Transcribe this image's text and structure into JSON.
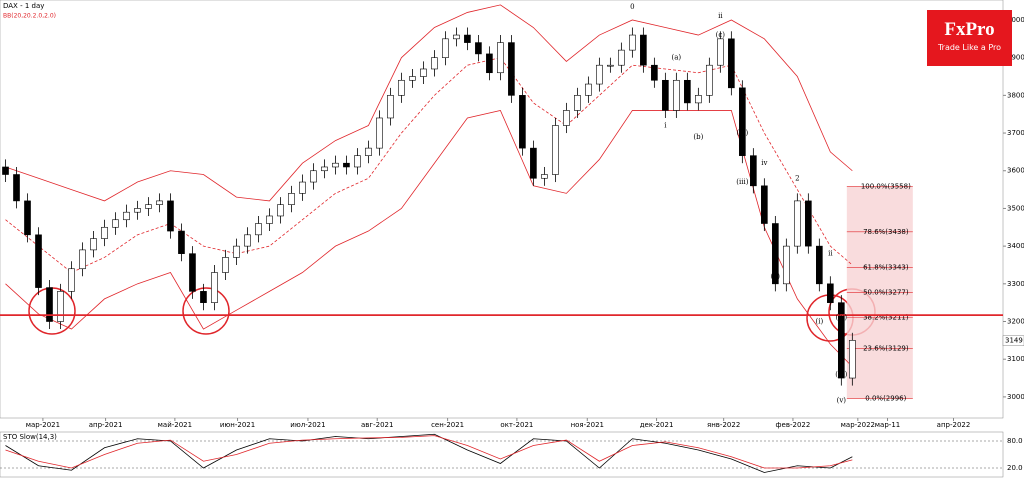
{
  "chart_data": {
    "type": "candlestick",
    "title": "DAX - 1 day",
    "indicator_label": "BB(20,20.2.0,2.0)",
    "oscillator_label": "STO Slow(14,3)",
    "brand": "FxPro",
    "tagline": "Trade Like a Pro",
    "xlim": [
      -0.5,
      90.7
    ],
    "ylim": [
      2944,
      4053
    ],
    "yticks": [
      3000,
      3100,
      3200,
      3300,
      3400,
      3500,
      3600,
      3700,
      3800,
      3900,
      4000
    ],
    "xticks": [
      {
        "value": 3.4,
        "label": "мар-2021"
      },
      {
        "value": 9.1,
        "label": "апр-2021"
      },
      {
        "value": 15.4,
        "label": "май-2021"
      },
      {
        "value": 21.1,
        "label": "июн-2021"
      },
      {
        "value": 27.5,
        "label": "июл-2021"
      },
      {
        "value": 33.8,
        "label": "авг-2021"
      },
      {
        "value": 40.2,
        "label": "сен-2021"
      },
      {
        "value": 46.5,
        "label": "окт-2021"
      },
      {
        "value": 52.9,
        "label": "ноя-2021"
      },
      {
        "value": 59.2,
        "label": "дек-2021"
      },
      {
        "value": 65.3,
        "label": "янв-2022"
      },
      {
        "value": 71.6,
        "label": "фев-2022"
      },
      {
        "value": 77.5,
        "label": "мар-2022"
      },
      {
        "value": 80.2,
        "label": "мар-11"
      },
      {
        "value": 86.2,
        "label": "апр-2022"
      }
    ],
    "open": [
      3610,
      3590,
      3520,
      3430,
      3290,
      3200,
      3280,
      3340,
      3390,
      3420,
      3450,
      3470,
      3490,
      3500,
      3510,
      3520,
      3440,
      3380,
      3280,
      3250,
      3330,
      3370,
      3400,
      3430,
      3460,
      3480,
      3510,
      3540,
      3570,
      3600,
      3610,
      3620,
      3610,
      3640,
      3660,
      3740,
      3800,
      3840,
      3850,
      3870,
      3900,
      3950,
      3960,
      3940,
      3910,
      3860,
      3940,
      3800,
      3660,
      3580,
      3590,
      3720,
      3760,
      3800,
      3830,
      3880,
      3880,
      3920,
      3960,
      3880,
      3840,
      3760,
      3840,
      3780,
      3800,
      3880,
      3950,
      3820,
      3640,
      3560,
      3460,
      3300,
      3400,
      3520,
      3400,
      3300,
      3250,
      3050
    ],
    "high": [
      3630,
      3610,
      3540,
      3450,
      3310,
      3300,
      3360,
      3410,
      3440,
      3470,
      3490,
      3510,
      3520,
      3530,
      3540,
      3540,
      3460,
      3400,
      3300,
      3350,
      3390,
      3420,
      3450,
      3480,
      3500,
      3530,
      3560,
      3590,
      3620,
      3630,
      3640,
      3640,
      3660,
      3680,
      3760,
      3820,
      3860,
      3870,
      3890,
      3920,
      3970,
      3980,
      3980,
      3960,
      3930,
      3960,
      3960,
      3820,
      3680,
      3610,
      3740,
      3780,
      3820,
      3850,
      3900,
      3900,
      3940,
      3980,
      3980,
      3900,
      3860,
      3860,
      3860,
      3820,
      3900,
      3970,
      3970,
      3840,
      3660,
      3580,
      3480,
      3420,
      3540,
      3540,
      3420,
      3320,
      3270,
      3170
    ],
    "low": [
      3570,
      3500,
      3410,
      3270,
      3180,
      3180,
      3260,
      3320,
      3370,
      3400,
      3430,
      3450,
      3470,
      3480,
      3490,
      3420,
      3360,
      3260,
      3230,
      3230,
      3310,
      3350,
      3380,
      3410,
      3440,
      3460,
      3490,
      3520,
      3550,
      3580,
      3590,
      3590,
      3590,
      3620,
      3640,
      3720,
      3780,
      3820,
      3830,
      3850,
      3880,
      3930,
      3920,
      3890,
      3840,
      3840,
      3780,
      3640,
      3560,
      3560,
      3570,
      3700,
      3740,
      3780,
      3810,
      3860,
      3860,
      3900,
      3860,
      3820,
      3740,
      3740,
      3760,
      3760,
      3780,
      3860,
      3800,
      3620,
      3540,
      3440,
      3280,
      3280,
      3380,
      3380,
      3280,
      3230,
      3030,
      3030
    ],
    "close": [
      3590,
      3520,
      3430,
      3290,
      3200,
      3280,
      3340,
      3390,
      3420,
      3450,
      3470,
      3490,
      3500,
      3510,
      3520,
      3440,
      3380,
      3280,
      3250,
      3330,
      3370,
      3400,
      3430,
      3460,
      3480,
      3510,
      3540,
      3570,
      3600,
      3610,
      3620,
      3610,
      3640,
      3660,
      3740,
      3800,
      3840,
      3850,
      3870,
      3900,
      3950,
      3960,
      3940,
      3910,
      3860,
      3940,
      3800,
      3660,
      3580,
      3590,
      3720,
      3760,
      3800,
      3830,
      3880,
      3880,
      3920,
      3960,
      3880,
      3840,
      3760,
      3840,
      3780,
      3800,
      3880,
      3950,
      3820,
      3640,
      3560,
      3460,
      3300,
      3400,
      3520,
      3400,
      3300,
      3250,
      3050,
      3150
    ],
    "up_color": "#ffffff",
    "down_color": "#000000",
    "bands": {
      "x": [
        0,
        3,
        6,
        9,
        12,
        15,
        18,
        21,
        24,
        27,
        30,
        33,
        36,
        39,
        42,
        45,
        48,
        51,
        54,
        57,
        60,
        63,
        66,
        69,
        72,
        75,
        77
      ],
      "color": "#e0262b",
      "upper": [
        3610,
        3580,
        3550,
        3520,
        3570,
        3600,
        3590,
        3530,
        3520,
        3620,
        3680,
        3720,
        3900,
        3980,
        4020,
        4040,
        3980,
        3890,
        3960,
        4000,
        3980,
        3960,
        4000,
        3950,
        3850,
        3650,
        3600
      ],
      "middle": [
        3470,
        3400,
        3330,
        3370,
        3430,
        3460,
        3400,
        3380,
        3400,
        3470,
        3540,
        3580,
        3700,
        3800,
        3880,
        3900,
        3780,
        3720,
        3800,
        3880,
        3870,
        3860,
        3880,
        3700,
        3550,
        3400,
        3350
      ],
      "lower": [
        3300,
        3220,
        3180,
        3260,
        3300,
        3330,
        3180,
        3230,
        3280,
        3330,
        3400,
        3440,
        3500,
        3620,
        3740,
        3760,
        3560,
        3540,
        3630,
        3760,
        3760,
        3760,
        3760,
        3450,
        3260,
        3140,
        3080
      ]
    },
    "support": 3217,
    "last_price": 3149,
    "fib": {
      "from_index": 76.5,
      "to_index": 82.5,
      "color": "#e0262b",
      "levels": [
        {
          "price": 3558,
          "label": "100.0%(3558)"
        },
        {
          "price": 3438,
          "label": "78.6%(3438)"
        },
        {
          "price": 3343,
          "label": "61.8%(3343)"
        },
        {
          "price": 3277,
          "label": "50.0%(3277)"
        },
        {
          "price": 3211,
          "label": "38.2%(3211)"
        },
        {
          "price": 3129,
          "label": "23.6%(3129)"
        },
        {
          "price": 2996,
          "label": "0.0%(2996)"
        }
      ]
    },
    "annotations": [
      {
        "text": "0",
        "index": 57,
        "price": 4035
      },
      {
        "text": "2",
        "index": 72,
        "price": 3580
      },
      {
        "text": "(a)",
        "index": 61,
        "price": 3900
      },
      {
        "text": "(b)",
        "index": 63,
        "price": 3690
      },
      {
        "text": "(c)",
        "index": 65,
        "price": 3960
      },
      {
        "text": "ii",
        "index": 65,
        "price": 4010
      },
      {
        "text": "i",
        "index": 60,
        "price": 3720
      },
      {
        "text": "(iv)",
        "index": 67,
        "price": 3700
      },
      {
        "text": "(iii)",
        "index": 67,
        "price": 3570
      },
      {
        "text": "iv",
        "index": 69,
        "price": 3620
      },
      {
        "text": "(v)",
        "index": 70,
        "price": 3320
      },
      {
        "text": "ii",
        "index": 75,
        "price": 3380
      },
      {
        "text": "(i)",
        "index": 74,
        "price": 3200
      },
      {
        "text": "(iv)",
        "index": 76,
        "price": 3210
      },
      {
        "text": "(iii)",
        "index": 76,
        "price": 3060
      },
      {
        "text": "(v)",
        "index": 76,
        "price": 2990
      }
    ],
    "stoch": {
      "ylim": [
        0,
        100
      ],
      "yticks": [
        {
          "value": 80,
          "label": "80.0"
        },
        {
          "value": 20,
          "label": "20.0"
        }
      ],
      "series": [
        {
          "name": "%K",
          "color": "#000000",
          "values": [
            70,
            25,
            15,
            65,
            85,
            80,
            20,
            60,
            85,
            80,
            90,
            85,
            90,
            95,
            60,
            30,
            85,
            80,
            20,
            85,
            75,
            60,
            40,
            10,
            25,
            20,
            45
          ]
        },
        {
          "name": "%D",
          "color": "#e0262b",
          "values": [
            60,
            35,
            20,
            50,
            75,
            82,
            35,
            50,
            75,
            82,
            85,
            87,
            88,
            92,
            70,
            40,
            70,
            82,
            35,
            70,
            78,
            65,
            45,
            20,
            20,
            25,
            38
          ]
        }
      ]
    }
  }
}
